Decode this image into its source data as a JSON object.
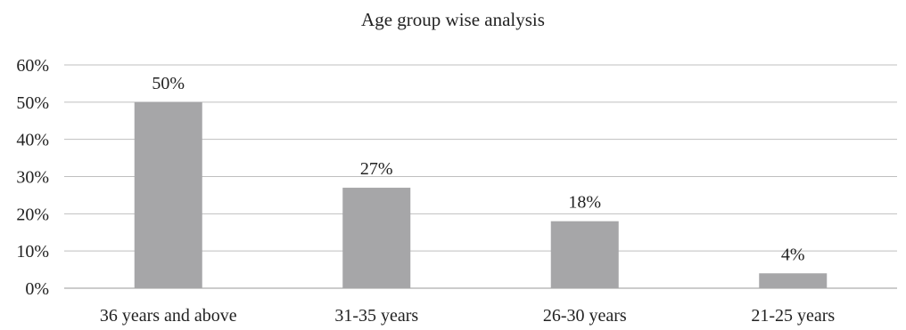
{
  "chart_data": {
    "type": "bar",
    "title": "Age group wise analysis",
    "categories": [
      "36 years and above",
      "31-35 years",
      "26-30 years",
      "21-25 years"
    ],
    "values": [
      50,
      27,
      18,
      4
    ],
    "data_labels": [
      "50%",
      "27%",
      "18%",
      "4%"
    ],
    "xlabel": "",
    "ylabel": "",
    "ylim": [
      0,
      60
    ],
    "yticks": [
      0,
      10,
      20,
      30,
      40,
      50,
      60
    ],
    "ytick_labels": [
      "0%",
      "10%",
      "20%",
      "30%",
      "40%",
      "50%",
      "60%"
    ],
    "grid": true,
    "legend": "none",
    "bar_color": "#a6a6a8",
    "grid_color": "#bfbfbf"
  }
}
